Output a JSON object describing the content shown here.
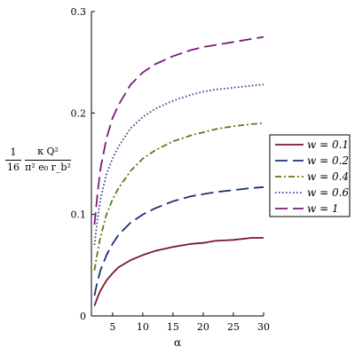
{
  "chart_data": {
    "type": "line",
    "title": "",
    "xlabel": "α",
    "ylabel": {
      "coef_num": "1",
      "coef_den": "16",
      "num": "κ Q²",
      "den": "π² e₀ r_b²"
    },
    "xlim": [
      1.5,
      30
    ],
    "ylim": [
      0,
      0.3
    ],
    "x_ticks": [
      5,
      10,
      15,
      20,
      25,
      30
    ],
    "y_ticks": [
      0,
      0.1,
      0.2,
      0.3
    ],
    "legend_position": "right",
    "series": [
      {
        "name": "w = 0.1",
        "color": "#7a1632",
        "dash": "solid",
        "x": [
          2,
          2.5,
          3,
          4,
          5,
          6,
          8,
          10,
          12,
          15,
          18,
          20,
          22,
          25,
          28,
          30
        ],
        "y": [
          0.01,
          0.018,
          0.025,
          0.035,
          0.042,
          0.048,
          0.055,
          0.06,
          0.064,
          0.068,
          0.071,
          0.072,
          0.074,
          0.075,
          0.077,
          0.077
        ]
      },
      {
        "name": "w = 0.2",
        "color": "#1a2f7a",
        "dash": "longdash",
        "x": [
          2,
          2.5,
          3,
          4,
          5,
          6,
          8,
          10,
          12,
          15,
          18,
          20,
          22,
          25,
          28,
          30
        ],
        "y": [
          0.02,
          0.034,
          0.045,
          0.06,
          0.071,
          0.08,
          0.092,
          0.1,
          0.106,
          0.113,
          0.118,
          0.12,
          0.122,
          0.124,
          0.126,
          0.127
        ]
      },
      {
        "name": "w = 0.4",
        "color": "#5a7a1a",
        "dash": "dashdot",
        "x": [
          2,
          2.5,
          3,
          4,
          5,
          6,
          8,
          10,
          12,
          15,
          18,
          20,
          22,
          25,
          28,
          30
        ],
        "y": [
          0.045,
          0.062,
          0.078,
          0.1,
          0.115,
          0.126,
          0.143,
          0.155,
          0.163,
          0.172,
          0.178,
          0.181,
          0.184,
          0.187,
          0.189,
          0.19
        ]
      },
      {
        "name": "w = 0.6",
        "color": "#2b3a8a",
        "dash": "dotted",
        "x": [
          2,
          2.5,
          3,
          4,
          5,
          6,
          8,
          10,
          12,
          15,
          18,
          20,
          22,
          25,
          28,
          30
        ],
        "y": [
          0.07,
          0.095,
          0.115,
          0.14,
          0.155,
          0.167,
          0.185,
          0.196,
          0.204,
          0.212,
          0.218,
          0.221,
          0.223,
          0.225,
          0.227,
          0.228
        ]
      },
      {
        "name": "w = 1",
        "color": "#7a1a7a",
        "dash": "longdash",
        "x": [
          2,
          2.5,
          3,
          4,
          5,
          6,
          8,
          10,
          12,
          15,
          18,
          20,
          22,
          25,
          28,
          30
        ],
        "y": [
          0.09,
          0.12,
          0.145,
          0.175,
          0.195,
          0.208,
          0.228,
          0.24,
          0.248,
          0.256,
          0.262,
          0.265,
          0.267,
          0.27,
          0.273,
          0.275
        ]
      }
    ]
  }
}
